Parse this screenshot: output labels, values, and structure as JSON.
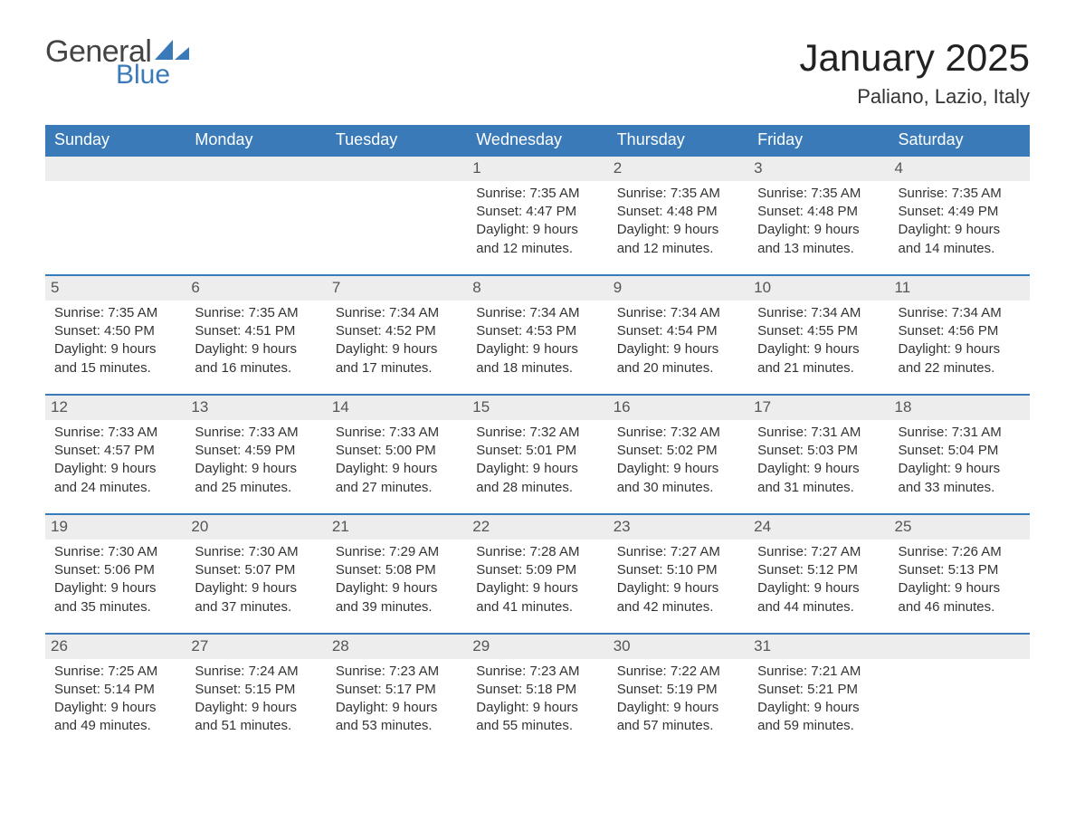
{
  "brand": {
    "general": "General",
    "blue": "Blue"
  },
  "header": {
    "title": "January 2025",
    "location": "Paliano, Lazio, Italy"
  },
  "colors": {
    "accent": "#3a7ab8",
    "header_bg": "#3a7ab8",
    "header_text": "#ffffff",
    "daynum_bg": "#ededed",
    "body_text": "#333333",
    "background": "#ffffff"
  },
  "weekdays": [
    "Sunday",
    "Monday",
    "Tuesday",
    "Wednesday",
    "Thursday",
    "Friday",
    "Saturday"
  ],
  "labels": {
    "sunrise": "Sunrise:",
    "sunset": "Sunset:",
    "daylight": "Daylight:"
  },
  "weeks": [
    [
      null,
      null,
      null,
      {
        "n": "1",
        "sunrise": "7:35 AM",
        "sunset": "4:47 PM",
        "daylight": "9 hours and 12 minutes."
      },
      {
        "n": "2",
        "sunrise": "7:35 AM",
        "sunset": "4:48 PM",
        "daylight": "9 hours and 12 minutes."
      },
      {
        "n": "3",
        "sunrise": "7:35 AM",
        "sunset": "4:48 PM",
        "daylight": "9 hours and 13 minutes."
      },
      {
        "n": "4",
        "sunrise": "7:35 AM",
        "sunset": "4:49 PM",
        "daylight": "9 hours and 14 minutes."
      }
    ],
    [
      {
        "n": "5",
        "sunrise": "7:35 AM",
        "sunset": "4:50 PM",
        "daylight": "9 hours and 15 minutes."
      },
      {
        "n": "6",
        "sunrise": "7:35 AM",
        "sunset": "4:51 PM",
        "daylight": "9 hours and 16 minutes."
      },
      {
        "n": "7",
        "sunrise": "7:34 AM",
        "sunset": "4:52 PM",
        "daylight": "9 hours and 17 minutes."
      },
      {
        "n": "8",
        "sunrise": "7:34 AM",
        "sunset": "4:53 PM",
        "daylight": "9 hours and 18 minutes."
      },
      {
        "n": "9",
        "sunrise": "7:34 AM",
        "sunset": "4:54 PM",
        "daylight": "9 hours and 20 minutes."
      },
      {
        "n": "10",
        "sunrise": "7:34 AM",
        "sunset": "4:55 PM",
        "daylight": "9 hours and 21 minutes."
      },
      {
        "n": "11",
        "sunrise": "7:34 AM",
        "sunset": "4:56 PM",
        "daylight": "9 hours and 22 minutes."
      }
    ],
    [
      {
        "n": "12",
        "sunrise": "7:33 AM",
        "sunset": "4:57 PM",
        "daylight": "9 hours and 24 minutes."
      },
      {
        "n": "13",
        "sunrise": "7:33 AM",
        "sunset": "4:59 PM",
        "daylight": "9 hours and 25 minutes."
      },
      {
        "n": "14",
        "sunrise": "7:33 AM",
        "sunset": "5:00 PM",
        "daylight": "9 hours and 27 minutes."
      },
      {
        "n": "15",
        "sunrise": "7:32 AM",
        "sunset": "5:01 PM",
        "daylight": "9 hours and 28 minutes."
      },
      {
        "n": "16",
        "sunrise": "7:32 AM",
        "sunset": "5:02 PM",
        "daylight": "9 hours and 30 minutes."
      },
      {
        "n": "17",
        "sunrise": "7:31 AM",
        "sunset": "5:03 PM",
        "daylight": "9 hours and 31 minutes."
      },
      {
        "n": "18",
        "sunrise": "7:31 AM",
        "sunset": "5:04 PM",
        "daylight": "9 hours and 33 minutes."
      }
    ],
    [
      {
        "n": "19",
        "sunrise": "7:30 AM",
        "sunset": "5:06 PM",
        "daylight": "9 hours and 35 minutes."
      },
      {
        "n": "20",
        "sunrise": "7:30 AM",
        "sunset": "5:07 PM",
        "daylight": "9 hours and 37 minutes."
      },
      {
        "n": "21",
        "sunrise": "7:29 AM",
        "sunset": "5:08 PM",
        "daylight": "9 hours and 39 minutes."
      },
      {
        "n": "22",
        "sunrise": "7:28 AM",
        "sunset": "5:09 PM",
        "daylight": "9 hours and 41 minutes."
      },
      {
        "n": "23",
        "sunrise": "7:27 AM",
        "sunset": "5:10 PM",
        "daylight": "9 hours and 42 minutes."
      },
      {
        "n": "24",
        "sunrise": "7:27 AM",
        "sunset": "5:12 PM",
        "daylight": "9 hours and 44 minutes."
      },
      {
        "n": "25",
        "sunrise": "7:26 AM",
        "sunset": "5:13 PM",
        "daylight": "9 hours and 46 minutes."
      }
    ],
    [
      {
        "n": "26",
        "sunrise": "7:25 AM",
        "sunset": "5:14 PM",
        "daylight": "9 hours and 49 minutes."
      },
      {
        "n": "27",
        "sunrise": "7:24 AM",
        "sunset": "5:15 PM",
        "daylight": "9 hours and 51 minutes."
      },
      {
        "n": "28",
        "sunrise": "7:23 AM",
        "sunset": "5:17 PM",
        "daylight": "9 hours and 53 minutes."
      },
      {
        "n": "29",
        "sunrise": "7:23 AM",
        "sunset": "5:18 PM",
        "daylight": "9 hours and 55 minutes."
      },
      {
        "n": "30",
        "sunrise": "7:22 AM",
        "sunset": "5:19 PM",
        "daylight": "9 hours and 57 minutes."
      },
      {
        "n": "31",
        "sunrise": "7:21 AM",
        "sunset": "5:21 PM",
        "daylight": "9 hours and 59 minutes."
      },
      null
    ]
  ]
}
